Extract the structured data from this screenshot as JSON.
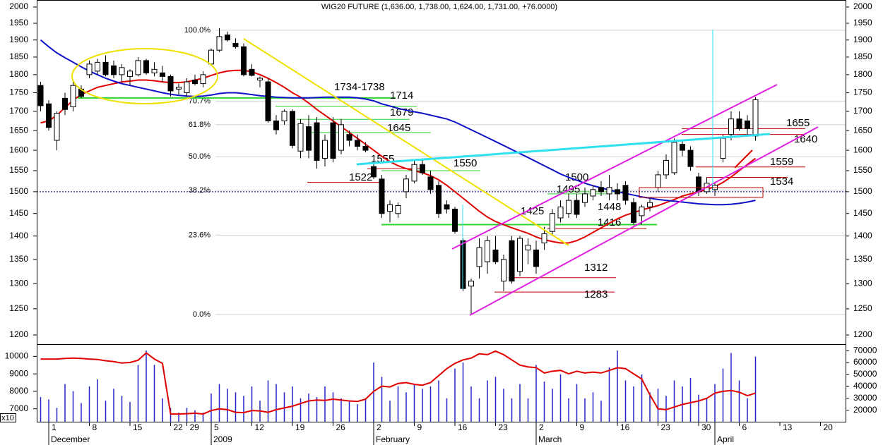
{
  "chart_data": [
    {
      "type": "candlestick",
      "title": "WIG20 FUTURE (1,636.00, 1,738.00, 1,624.00, 1,731.00, +76.0000)",
      "log_scale": true,
      "ylim": [
        1183,
        2022
      ],
      "yticks": [
        1200,
        1250,
        1300,
        1350,
        1400,
        1450,
        1500,
        1550,
        1600,
        1650,
        1700,
        1750,
        1800,
        1850,
        1900,
        1950,
        2000
      ],
      "reference_line": 1500,
      "categories": [
        null,
        "1",
        null,
        null,
        null,
        null,
        "8",
        null,
        null,
        null,
        null,
        "15",
        null,
        null,
        null,
        null,
        "22",
        null,
        "29",
        null,
        null,
        "5",
        null,
        null,
        null,
        null,
        "12",
        null,
        null,
        null,
        null,
        "19",
        null,
        null,
        null,
        null,
        "26",
        null,
        null,
        null,
        null,
        "2",
        null,
        null,
        null,
        null,
        "9",
        null,
        null,
        null,
        null,
        "16",
        null,
        null,
        null,
        null,
        "23",
        null,
        null,
        null,
        null,
        "2",
        null,
        null,
        null,
        null,
        "9",
        null,
        null,
        null,
        null,
        "16",
        null,
        null,
        null,
        null,
        "23",
        null,
        null,
        null,
        null,
        "30",
        null,
        null,
        null,
        null,
        "6",
        null,
        null,
        null,
        null,
        "13",
        null,
        null,
        null,
        null,
        "20",
        null,
        null,
        null
      ],
      "months": [
        null,
        "December",
        null,
        null,
        null,
        null,
        null,
        null,
        null,
        null,
        null,
        null,
        null,
        null,
        null,
        null,
        null,
        null,
        null,
        null,
        null,
        "2009",
        null,
        null,
        null,
        null,
        null,
        null,
        null,
        null,
        null,
        null,
        null,
        null,
        null,
        null,
        null,
        null,
        null,
        null,
        null,
        "February",
        null,
        null,
        null,
        null,
        null,
        null,
        null,
        null,
        null,
        null,
        null,
        null,
        null,
        null,
        null,
        null,
        null,
        null,
        null,
        "March",
        null,
        null,
        null,
        null,
        null,
        null,
        null,
        null,
        null,
        null,
        null,
        null,
        null,
        null,
        null,
        null,
        null,
        null,
        null,
        null,
        null,
        "April",
        null,
        null,
        null,
        null,
        null,
        null,
        null,
        null,
        null,
        null,
        null,
        null,
        null,
        null,
        null,
        null
      ],
      "up_color": "#ffffff",
      "down_color": "#000000",
      "open": [
        1770,
        1720,
        1625,
        1735,
        1712,
        1760,
        1800,
        1810,
        1835,
        1825,
        1800,
        1795,
        1800,
        1840,
        1805,
        1805,
        1795,
        1760,
        1750,
        1785,
        1775,
        1830,
        1870,
        1915,
        1890,
        1880,
        1815,
        1785,
        1780,
        1675,
        1675,
        1700,
        1598,
        1660,
        1670,
        1580,
        1670,
        1600,
        1640,
        1625,
        1610,
        1560,
        1530,
        1455,
        1450,
        1500,
        1525,
        1565,
        1535,
        1515,
        1470,
        1460,
        1390,
        1295,
        1335,
        1345,
        1370,
        1305,
        1390,
        1325,
        1370,
        1370,
        1385,
        1410,
        1440,
        1450,
        1480,
        1475,
        1490,
        1510,
        1495,
        1505,
        1515,
        1475,
        1445,
        1465,
        1510,
        1540,
        1545,
        1615,
        1600,
        1535,
        1500,
        1505,
        1580,
        1640,
        1680,
        1675,
        1636,
        null,
        null,
        null,
        null,
        null,
        null,
        null,
        null,
        null,
        null,
        null
      ],
      "high": [
        1780,
        1730,
        1700,
        1750,
        1785,
        1770,
        1840,
        1845,
        1855,
        1840,
        1830,
        1815,
        1850,
        1845,
        1835,
        1825,
        1800,
        1775,
        1790,
        1800,
        1810,
        1875,
        1935,
        1925,
        1905,
        1890,
        1830,
        1795,
        1790,
        1690,
        1705,
        1705,
        1680,
        1690,
        1685,
        1640,
        1685,
        1680,
        1650,
        1640,
        1620,
        1575,
        1540,
        1480,
        1475,
        1540,
        1575,
        1580,
        1550,
        1525,
        1480,
        1465,
        1395,
        1310,
        1395,
        1400,
        1400,
        1360,
        1400,
        1400,
        1395,
        1390,
        1420,
        1460,
        1480,
        1495,
        1495,
        1510,
        1515,
        1525,
        1540,
        1520,
        1525,
        1485,
        1470,
        1485,
        1550,
        1590,
        1630,
        1625,
        1610,
        1545,
        1535,
        1520,
        1640,
        1700,
        1700,
        1690,
        1738,
        null,
        null,
        null,
        null,
        null,
        null,
        null,
        null,
        null,
        null,
        null
      ],
      "low": [
        1700,
        1650,
        1600,
        1690,
        1700,
        1735,
        1790,
        1800,
        1795,
        1790,
        1780,
        1770,
        1795,
        1800,
        1795,
        1780,
        1740,
        1745,
        1740,
        1770,
        1765,
        1825,
        1865,
        1895,
        1875,
        1795,
        1795,
        1765,
        1670,
        1640,
        1665,
        1605,
        1580,
        1580,
        1555,
        1560,
        1570,
        1590,
        1610,
        1600,
        1595,
        1530,
        1440,
        1430,
        1440,
        1485,
        1520,
        1540,
        1495,
        1440,
        1450,
        1405,
        1285,
        1240,
        1310,
        1320,
        1340,
        1285,
        1300,
        1315,
        1340,
        1320,
        1370,
        1400,
        1430,
        1440,
        1440,
        1465,
        1480,
        1490,
        1480,
        1480,
        1470,
        1425,
        1425,
        1455,
        1500,
        1530,
        1540,
        1585,
        1550,
        1490,
        1495,
        1490,
        1570,
        1625,
        1650,
        1640,
        1624,
        null,
        null,
        null,
        null,
        null,
        null,
        null,
        null,
        null,
        null,
        null
      ],
      "close": [
        1715,
        1658,
        1695,
        1705,
        1770,
        1740,
        1830,
        1835,
        1800,
        1800,
        1820,
        1810,
        1840,
        1805,
        1815,
        1795,
        1755,
        1765,
        1780,
        1775,
        1800,
        1870,
        1910,
        1900,
        1880,
        1800,
        1798,
        1790,
        1675,
        1652,
        1700,
        1612,
        1668,
        1600,
        1575,
        1625,
        1580,
        1665,
        1625,
        1610,
        1600,
        1535,
        1450,
        1470,
        1468,
        1530,
        1565,
        1545,
        1505,
        1450,
        1460,
        1410,
        1290,
        1305,
        1375,
        1390,
        1345,
        1350,
        1305,
        1395,
        1380,
        1335,
        1405,
        1450,
        1465,
        1480,
        1448,
        1495,
        1505,
        1500,
        1510,
        1495,
        1480,
        1430,
        1465,
        1475,
        1540,
        1575,
        1620,
        1600,
        1560,
        1500,
        1520,
        1515,
        1630,
        1680,
        1655,
        1655,
        1731,
        null,
        null,
        null,
        null,
        null,
        null,
        null,
        null,
        null,
        null,
        null
      ],
      "lines": [
        {
          "color": "#e00000",
          "values": [
            1670,
            1675,
            1690,
            1710,
            1730,
            1745,
            1755,
            1765,
            1770,
            1775,
            1780,
            1782,
            1785,
            1785,
            1783,
            1780,
            1778,
            1778,
            1780,
            1785,
            1790,
            1798,
            1805,
            1810,
            1812,
            1812,
            1808,
            1800,
            1790,
            1778,
            1765,
            1750,
            1738,
            1722,
            1705,
            1690,
            1675,
            1660,
            1645,
            1630,
            1615,
            1600,
            1585,
            1572,
            1562,
            1555,
            1550,
            1545,
            1538,
            1528,
            1515,
            1500,
            1485,
            1470,
            1455,
            1442,
            1432,
            1425,
            1418,
            1412,
            1406,
            1398,
            1392,
            1388,
            1385,
            1385,
            1390,
            1398,
            1408,
            1418,
            1428,
            1438,
            1446,
            1452,
            1458,
            1463,
            1468,
            1475,
            1482,
            1490,
            1495,
            1500,
            1505,
            1512,
            1522,
            1535,
            1550,
            1565,
            1580,
            null,
            null,
            null,
            null,
            null,
            null,
            null,
            null,
            null,
            null,
            null
          ]
        },
        {
          "color": "#1010c8",
          "values": [
            1900,
            1880,
            1862,
            1848,
            1835,
            1822,
            1810,
            1800,
            1790,
            1782,
            1775,
            1770,
            1765,
            1760,
            1755,
            1750,
            1746,
            1743,
            1741,
            1740,
            1741,
            1744,
            1748,
            1750,
            1750,
            1748,
            1745,
            1742,
            1740,
            1738,
            1737,
            1736,
            1736,
            1736,
            1737,
            1738,
            1738,
            1738,
            1738,
            1736,
            1733,
            1728,
            1720,
            1714,
            1708,
            1703,
            1699,
            1695,
            1690,
            1685,
            1680,
            1672,
            1662,
            1652,
            1642,
            1632,
            1622,
            1612,
            1602,
            1592,
            1582,
            1572,
            1562,
            1552,
            1542,
            1534,
            1527,
            1520,
            1514,
            1509,
            1504,
            1500,
            1496,
            1492,
            1488,
            1485,
            1482,
            1480,
            1478,
            1476,
            1474,
            1472,
            1471,
            1470,
            1470,
            1471,
            1473,
            1476,
            1480,
            null,
            null,
            null,
            null,
            null,
            null,
            null,
            null,
            null,
            null,
            null
          ]
        }
      ],
      "fib": [
        {
          "label": "100.0%",
          "value": 1929
        },
        {
          "label": "70.7%",
          "value": 1727
        },
        {
          "label": "61.8%",
          "value": 1665
        },
        {
          "label": "50.0%",
          "value": 1584
        },
        {
          "label": "38.2%",
          "value": 1503
        },
        {
          "label": "23.6%",
          "value": 1402
        },
        {
          "label": "0.0%",
          "value": 1239
        }
      ],
      "annotations": [
        {
          "label": "1734-1738",
          "value": 1736,
          "color": "#2fd42f"
        },
        {
          "value": 1714,
          "color": "#2fd42f"
        },
        {
          "value": 1679,
          "color": "#2fd42f"
        },
        {
          "value": 1645,
          "color": "#2fd42f"
        },
        {
          "value": 1555,
          "color": "#e8141c"
        },
        {
          "value": 1522,
          "color": "#e8141c"
        },
        {
          "value": 1550,
          "color": "#2fd42f"
        },
        {
          "value": 1500,
          "color": "#2fd42f"
        },
        {
          "value": 1495,
          "color": "#2fd42f"
        },
        {
          "value": 1425,
          "color": "#2fd42f"
        },
        {
          "value": 1448,
          "color": "#1010d0"
        },
        {
          "value": 1416,
          "color": "#e8141c"
        },
        {
          "value": 1312,
          "color": "#e8141c"
        },
        {
          "value": 1283,
          "color": "#e8141c"
        },
        {
          "value": 1655,
          "color": "#e8141c"
        },
        {
          "value": 1640,
          "color": "#e8141c"
        },
        {
          "value": 1559,
          "color": "#e8141c"
        },
        {
          "value": 1534,
          "color": "#e8141c"
        }
      ]
    },
    {
      "type": "bar",
      "axis_unit": "x10",
      "ylim": [
        6260,
        10700
      ],
      "yticks": [
        7000,
        8000,
        9000,
        10000
      ],
      "y2lim": [
        10360,
        75400
      ],
      "y2ticks": [
        20000,
        30000,
        40000,
        50000,
        60000,
        70000
      ],
      "series": [
        {
          "type": "bar",
          "axis": "y2",
          "color": "#2323c8",
          "values": [
            31000,
            29000,
            22000,
            42000,
            36000,
            26000,
            40000,
            46000,
            28000,
            38000,
            32000,
            27000,
            58000,
            70000,
            58000,
            30000,
            22000,
            18000,
            22000,
            20000,
            18000,
            34000,
            42000,
            38000,
            35000,
            32000,
            40000,
            28000,
            45000,
            42000,
            35000,
            40000,
            30000,
            34000,
            31000,
            40000,
            35000,
            30000,
            28000,
            25000,
            30000,
            60000,
            48000,
            28000,
            40000,
            35000,
            42000,
            38000,
            40000,
            45000,
            30000,
            55000,
            60000,
            40000,
            30000,
            45000,
            48000,
            38000,
            30000,
            42000,
            30000,
            58000,
            44000,
            38000,
            50000,
            30000,
            42000,
            30000,
            35000,
            28000,
            56000,
            70000,
            45000,
            40000,
            50000,
            35000,
            38000,
            32000,
            45000,
            40000,
            47000,
            33000,
            30000,
            42000,
            55000,
            68000,
            45000,
            30000,
            65000,
            null,
            null,
            null,
            null,
            null,
            null,
            null,
            null,
            null,
            null,
            null
          ]
        },
        {
          "type": "line",
          "color": "#e00000",
          "values": [
            9850,
            9850,
            9850,
            9880,
            9900,
            9880,
            9850,
            9820,
            9750,
            9700,
            9620,
            9650,
            9780,
            10200,
            9850,
            9600,
            6700,
            6700,
            6720,
            6750,
            6700,
            6900,
            7000,
            6950,
            6800,
            6780,
            6900,
            6880,
            6800,
            6950,
            7050,
            7150,
            7300,
            7450,
            7500,
            7480,
            7550,
            7500,
            7450,
            7420,
            7550,
            8000,
            8300,
            8250,
            8450,
            8500,
            8400,
            8350,
            8500,
            8900,
            9300,
            9600,
            9800,
            9900,
            10150,
            10100,
            10300,
            10100,
            9800,
            9500,
            9400,
            9350,
            9050,
            9150,
            9200,
            9000,
            9150,
            9050,
            9100,
            9050,
            9200,
            9350,
            9300,
            9000,
            8700,
            7800,
            7000,
            6950,
            7100,
            7250,
            7350,
            7450,
            7600,
            7900,
            8000,
            8050,
            7950,
            7750,
            7900,
            null,
            null,
            null,
            null,
            null,
            null,
            null,
            null,
            null,
            null,
            null
          ]
        }
      ]
    }
  ]
}
